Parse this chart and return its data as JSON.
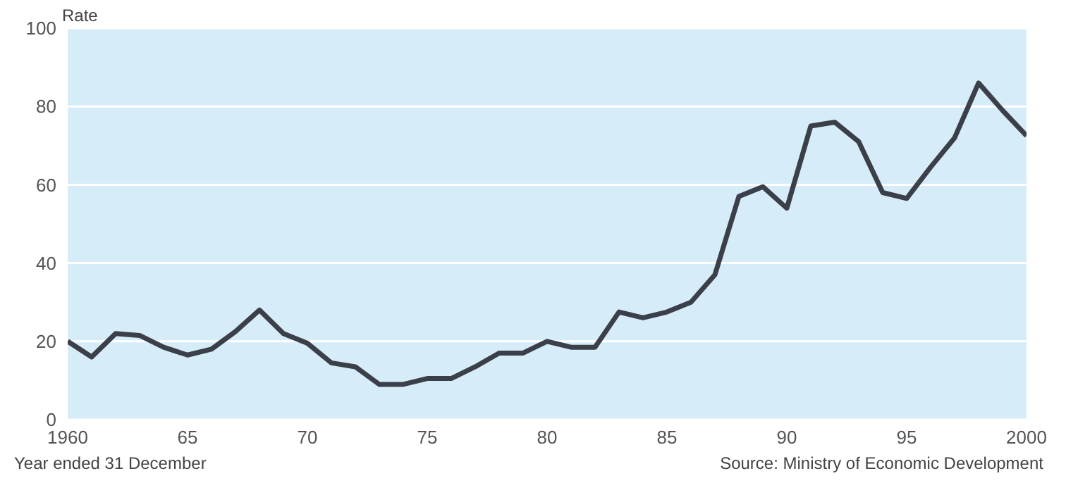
{
  "chart_data": {
    "type": "line",
    "ylabel": "Rate",
    "xlabel": "Year ended 31 December",
    "annotations": [
      "Source: Ministry of Economic Development"
    ],
    "x": [
      1960,
      1961,
      1962,
      1963,
      1964,
      1965,
      1966,
      1967,
      1968,
      1969,
      1970,
      1971,
      1972,
      1973,
      1974,
      1975,
      1976,
      1977,
      1978,
      1979,
      1980,
      1981,
      1982,
      1983,
      1984,
      1985,
      1986,
      1987,
      1988,
      1989,
      1990,
      1991,
      1992,
      1993,
      1994,
      1995,
      1996,
      1997,
      1998,
      1999,
      2000
    ],
    "series": [
      {
        "color": "#3b3f4a",
        "values": [
          20,
          16,
          22,
          21.5,
          18.5,
          16.5,
          18,
          22.5,
          28,
          22,
          19.5,
          14.5,
          13.5,
          9,
          9,
          10.5,
          10.5,
          13.5,
          17,
          17,
          20,
          18.5,
          18.5,
          27.5,
          26,
          27.5,
          30,
          37,
          57,
          59.5,
          54,
          75,
          76,
          71,
          58,
          56.5,
          64.5,
          72,
          86,
          79,
          72.5
        ]
      }
    ],
    "xlim": [
      1960,
      2000
    ],
    "xticks": [
      1960,
      {
        "value": 1965,
        "label": "65"
      },
      {
        "value": 1970,
        "label": "70"
      },
      {
        "value": 1975,
        "label": "75"
      },
      {
        "value": 1980,
        "label": "80"
      },
      {
        "value": 1985,
        "label": "85"
      },
      {
        "value": 1990,
        "label": "90"
      },
      {
        "value": 1995,
        "label": "95"
      },
      2000
    ],
    "ylim": [
      0,
      100
    ],
    "yticks": [
      0,
      20,
      40,
      60,
      80,
      100
    ],
    "grid": "y",
    "marker": "none",
    "line_style": "solid"
  }
}
